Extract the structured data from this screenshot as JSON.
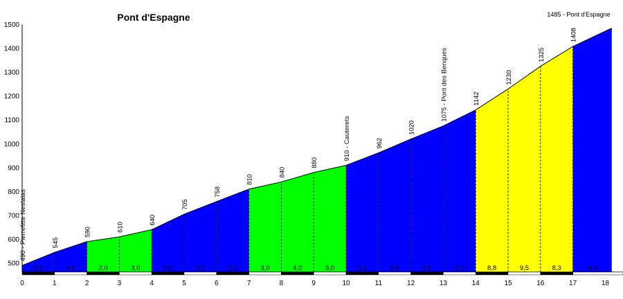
{
  "chart_data": {
    "type": "area",
    "title": "Pont d'Espagne",
    "summit_label": "1485 - Pont d'Espagne",
    "xlabel": "",
    "ylabel": "",
    "xlim": [
      0,
      18.2
    ],
    "ylim": [
      450,
      1500
    ],
    "x_ticks": [
      0,
      1,
      2,
      3,
      4,
      5,
      6,
      7,
      8,
      9,
      10,
      11,
      12,
      13,
      14,
      15,
      16,
      17,
      18
    ],
    "y_ticks": [
      500,
      600,
      700,
      800,
      900,
      1000,
      1100,
      1200,
      1300,
      1400,
      1500
    ],
    "points": [
      {
        "x": 0,
        "y": 490,
        "label": "490 - Pierrefitte Nestalas"
      },
      {
        "x": 1,
        "y": 545,
        "label": "545"
      },
      {
        "x": 2,
        "y": 590,
        "label": "590"
      },
      {
        "x": 3,
        "y": 610,
        "label": "610"
      },
      {
        "x": 4,
        "y": 640,
        "label": "640"
      },
      {
        "x": 5,
        "y": 705,
        "label": "705"
      },
      {
        "x": 6,
        "y": 758,
        "label": "758"
      },
      {
        "x": 7,
        "y": 810,
        "label": "810"
      },
      {
        "x": 8,
        "y": 840,
        "label": "840"
      },
      {
        "x": 9,
        "y": 880,
        "label": "880"
      },
      {
        "x": 10,
        "y": 910,
        "label": "910 - Cauterets"
      },
      {
        "x": 11,
        "y": 962,
        "label": "962"
      },
      {
        "x": 12,
        "y": 1020,
        "label": "1020"
      },
      {
        "x": 13,
        "y": 1075,
        "label": "1075 - Pont des Benques"
      },
      {
        "x": 14,
        "y": 1142,
        "label": "1142"
      },
      {
        "x": 15,
        "y": 1230,
        "label": "1230"
      },
      {
        "x": 16,
        "y": 1325,
        "label": "1325"
      },
      {
        "x": 17,
        "y": 1408,
        "label": "1408"
      },
      {
        "x": 18.2,
        "y": 1485,
        "label": ""
      }
    ],
    "segments": [
      {
        "x0": 0,
        "x1": 1,
        "gradient": "5,5",
        "color": "#0000ff"
      },
      {
        "x0": 1,
        "x1": 2,
        "gradient": "4,5",
        "color": "#0000ff"
      },
      {
        "x0": 2,
        "x1": 3,
        "gradient": "2,0",
        "color": "#00ff00"
      },
      {
        "x0": 3,
        "x1": 4,
        "gradient": "3,0",
        "color": "#00ff00"
      },
      {
        "x0": 4,
        "x1": 5,
        "gradient": "6,5",
        "color": "#0000ff"
      },
      {
        "x0": 5,
        "x1": 6,
        "gradient": "5,3",
        "color": "#0000ff"
      },
      {
        "x0": 6,
        "x1": 7,
        "gradient": "5,2",
        "color": "#0000ff"
      },
      {
        "x0": 7,
        "x1": 8,
        "gradient": "3,0",
        "color": "#00ff00"
      },
      {
        "x0": 8,
        "x1": 9,
        "gradient": "4,0",
        "color": "#00ff00"
      },
      {
        "x0": 9,
        "x1": 10,
        "gradient": "3,0",
        "color": "#00ff00"
      },
      {
        "x0": 10,
        "x1": 11,
        "gradient": "5,2",
        "color": "#0000ff"
      },
      {
        "x0": 11,
        "x1": 12,
        "gradient": "5,8",
        "color": "#0000ff"
      },
      {
        "x0": 12,
        "x1": 13,
        "gradient": "5,5",
        "color": "#0000ff"
      },
      {
        "x0": 13,
        "x1": 14,
        "gradient": "6,7",
        "color": "#0000ff"
      },
      {
        "x0": 14,
        "x1": 15,
        "gradient": "8,8",
        "color": "#ffff00"
      },
      {
        "x0": 15,
        "x1": 16,
        "gradient": "9,5",
        "color": "#ffff00"
      },
      {
        "x0": 16,
        "x1": 17,
        "gradient": "8,3",
        "color": "#ffff00"
      },
      {
        "x0": 17,
        "x1": 18.2,
        "gradient": "6,4",
        "color": "#0000ff"
      }
    ],
    "colors": {
      "blue": "#0000ff",
      "green": "#00ff00",
      "yellow": "#ffff00",
      "axis": "#000000"
    },
    "grid": false,
    "legend": "none"
  }
}
